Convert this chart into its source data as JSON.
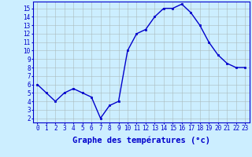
{
  "x": [
    0,
    1,
    2,
    3,
    4,
    5,
    6,
    7,
    8,
    9,
    10,
    11,
    12,
    13,
    14,
    15,
    16,
    17,
    18,
    19,
    20,
    21,
    22,
    23
  ],
  "y": [
    6,
    5,
    4,
    5,
    5.5,
    5,
    4.5,
    2,
    3.5,
    4,
    10,
    12,
    12.5,
    14,
    15,
    15,
    15.5,
    14.5,
    13,
    11,
    9.5,
    8.5,
    8,
    8
  ],
  "line_color": "#0000cc",
  "marker": "s",
  "markersize": 1.8,
  "linewidth": 1.0,
  "xlabel": "Graphe des températures (°c)",
  "xlabel_color": "#0000cc",
  "xlabel_fontsize": 7.5,
  "ytick_labels": [
    "2",
    "3",
    "4",
    "5",
    "6",
    "7",
    "8",
    "9",
    "10",
    "11",
    "12",
    "13",
    "14",
    "15"
  ],
  "ytick_vals": [
    2,
    3,
    4,
    5,
    6,
    7,
    8,
    9,
    10,
    11,
    12,
    13,
    14,
    15
  ],
  "xlim": [
    -0.5,
    23.5
  ],
  "ylim": [
    1.5,
    15.8
  ],
  "bg_color": "#cceeff",
  "grid_color": "#aabbbb",
  "tick_color": "#0000cc",
  "tick_fontsize": 5.5,
  "spine_color": "#0000cc"
}
